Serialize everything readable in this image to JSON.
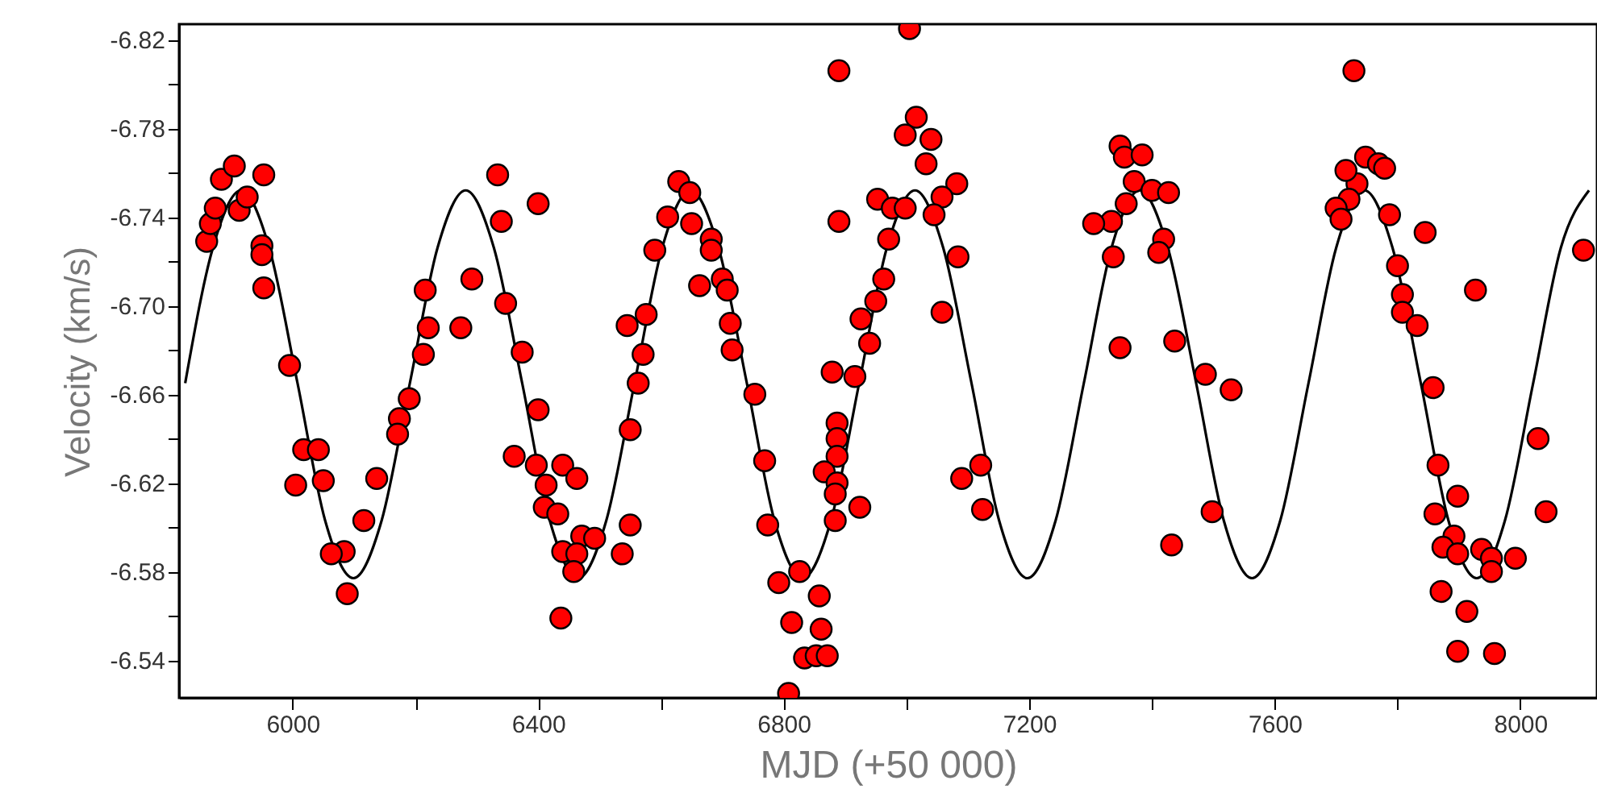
{
  "chart_data": {
    "type": "scatter",
    "xlabel": "MJD (+50 000)",
    "ylabel": "Velocity (km/s)",
    "xlim": [
      5815,
      8125
    ],
    "ylim": [
      -6.523,
      -6.827
    ],
    "xticks": [
      6000,
      {
        "value": 6200,
        "label": null
      },
      6400,
      {
        "value": 6600,
        "label": null
      },
      6800,
      {
        "value": 7000,
        "label": null
      },
      7200,
      {
        "value": 7400,
        "label": null
      },
      7600,
      {
        "value": 7800,
        "label": null
      },
      8000
    ],
    "yticks": [
      -6.82,
      {
        "value": -6.8,
        "label": null
      },
      -6.78,
      {
        "value": -6.76,
        "label": null
      },
      -6.74,
      {
        "value": -6.72,
        "label": null
      },
      {
        "value": -6.7,
        "label": "-6.70"
      },
      {
        "value": -6.68,
        "label": null
      },
      -6.66,
      {
        "value": -6.64,
        "label": null
      },
      -6.62,
      {
        "value": -6.6,
        "label": null
      },
      -6.58,
      {
        "value": -6.56,
        "label": null
      },
      -6.54
    ],
    "grid": false,
    "marker": "circle",
    "series": [
      {
        "type": "line",
        "color": "#000000",
        "marker": "none",
        "line_style": "solid",
        "x": [
          5825,
          5870,
          5916,
          5962,
          6008,
          6053,
          6099,
          6145,
          6191,
          6236,
          6282,
          6328,
          6374,
          6419,
          6465,
          6511,
          6557,
          6602,
          6648,
          6694,
          6740,
          6785,
          6831,
          6877,
          6923,
          6968,
          7014,
          7060,
          7106,
          7151,
          7197,
          7243,
          7289,
          7334,
          7380,
          7426,
          7472,
          7517,
          7563,
          7609,
          7655,
          7700,
          7746,
          7792,
          7838,
          7883,
          7929,
          7975,
          8021,
          8066,
          8112
        ],
        "values": [
          -6.665,
          -6.726,
          -6.752,
          -6.726,
          -6.665,
          -6.603,
          -6.577,
          -6.603,
          -6.665,
          -6.726,
          -6.752,
          -6.726,
          -6.665,
          -6.603,
          -6.577,
          -6.603,
          -6.665,
          -6.726,
          -6.752,
          -6.726,
          -6.665,
          -6.603,
          -6.577,
          -6.603,
          -6.665,
          -6.726,
          -6.752,
          -6.726,
          -6.665,
          -6.603,
          -6.577,
          -6.603,
          -6.665,
          -6.726,
          -6.752,
          -6.726,
          -6.665,
          -6.603,
          -6.577,
          -6.603,
          -6.665,
          -6.726,
          -6.752,
          -6.726,
          -6.665,
          -6.603,
          -6.577,
          -6.603,
          -6.665,
          -6.726,
          -6.752
        ]
      },
      {
        "type": "scatter",
        "color": "#ff0000",
        "x": [
          5860,
          5866,
          5874,
          5884,
          5905,
          5913,
          5926,
          5953,
          5950,
          5950,
          5953,
          5995,
          6190,
          6216,
          6221,
          6213,
          6274,
          6292,
          6334,
          6340,
          6347,
          6374,
          6400,
          6545,
          6576,
          6571,
          6563,
          6590,
          6611,
          6629,
          6647,
          6650,
          6682,
          6682,
          6663,
          6700,
          6708,
          6713,
          6716,
          6753,
          6174,
          6171,
          6137,
          6116,
          6084,
          6063,
          6089,
          6018,
          6042,
          6005,
          6050,
          6400,
          6361,
          6397,
          6440,
          6413,
          6463,
          6410,
          6432,
          6471,
          6492,
          6440,
          6463,
          6458,
          6437,
          6537,
          6550,
          6550,
          6769,
          6774,
          6792,
          6813,
          6834,
          6808,
          6826,
          6887,
          6887,
          6887,
          6866,
          6887,
          6884,
          6924,
          6884,
          6858,
          6861,
          6853,
          6871,
          7090,
          7121,
          7124,
          7498,
          7432,
          7858,
          7866,
          7898,
          7861,
          7892,
          7874,
          7898,
          7937,
          7953,
          7953,
          7992,
          7871,
          7913,
          7898,
          7958,
          8029,
          8042,
          7005,
          6890,
          7016,
          6998,
          7040,
          7032,
          7082,
          6953,
          6977,
          6998,
          7058,
          7045,
          6890,
          6971,
          7084,
          6963,
          6950,
          6926,
          6940,
          7058,
          6879,
          6916,
          7348,
          7355,
          7384,
          7371,
          7400,
          7427,
          7358,
          7334,
          7305,
          7419,
          7411,
          7337,
          7348,
          7437,
          7487,
          7529,
          7729,
          7748,
          7769,
          7779,
          7734,
          7716,
          7721,
          7700,
          7708,
          7787,
          7845,
          7800,
          7808,
          7808,
          7832,
          7927,
          8103
        ],
        "values": [
          -6.729,
          -6.737,
          -6.744,
          -6.757,
          -6.763,
          -6.743,
          -6.749,
          -6.759,
          -6.727,
          -6.723,
          -6.708,
          -6.673,
          -6.658,
          -6.707,
          -6.69,
          -6.678,
          -6.69,
          -6.712,
          -6.759,
          -6.738,
          -6.701,
          -6.679,
          -6.746,
          -6.691,
          -6.696,
          -6.678,
          -6.665,
          -6.725,
          -6.74,
          -6.756,
          -6.751,
          -6.737,
          -6.73,
          -6.725,
          -6.709,
          -6.712,
          -6.707,
          -6.692,
          -6.68,
          -6.66,
          -6.649,
          -6.642,
          -6.622,
          -6.603,
          -6.589,
          -6.588,
          -6.57,
          -6.635,
          -6.635,
          -6.619,
          -6.621,
          -6.653,
          -6.632,
          -6.628,
          -6.628,
          -6.619,
          -6.622,
          -6.609,
          -6.606,
          -6.596,
          -6.595,
          -6.589,
          -6.588,
          -6.58,
          -6.559,
          -6.588,
          -6.601,
          -6.644,
          -6.63,
          -6.601,
          -6.575,
          -6.557,
          -6.541,
          -6.525,
          -6.58,
          -6.647,
          -6.64,
          -6.632,
          -6.625,
          -6.62,
          -6.615,
          -6.609,
          -6.603,
          -6.569,
          -6.554,
          -6.542,
          -6.542,
          -6.622,
          -6.628,
          -6.608,
          -6.607,
          -6.592,
          -6.663,
          -6.628,
          -6.614,
          -6.606,
          -6.596,
          -6.591,
          -6.588,
          -6.59,
          -6.586,
          -6.58,
          -6.586,
          -6.571,
          -6.562,
          -6.544,
          -6.543,
          -6.64,
          -6.607,
          -6.825,
          -6.806,
          -6.785,
          -6.777,
          -6.775,
          -6.764,
          -6.755,
          -6.748,
          -6.744,
          -6.744,
          -6.749,
          -6.741,
          -6.738,
          -6.73,
          -6.722,
          -6.712,
          -6.702,
          -6.694,
          -6.683,
          -6.697,
          -6.67,
          -6.668,
          -6.772,
          -6.767,
          -6.768,
          -6.756,
          -6.752,
          -6.751,
          -6.746,
          -6.738,
          -6.737,
          -6.73,
          -6.724,
          -6.722,
          -6.681,
          -6.684,
          -6.669,
          -6.662,
          -6.806,
          -6.767,
          -6.764,
          -6.762,
          -6.755,
          -6.761,
          -6.748,
          -6.744,
          -6.739,
          -6.741,
          -6.733,
          -6.718,
          -6.705,
          -6.697,
          -6.691,
          -6.707,
          -6.725
        ]
      }
    ]
  }
}
